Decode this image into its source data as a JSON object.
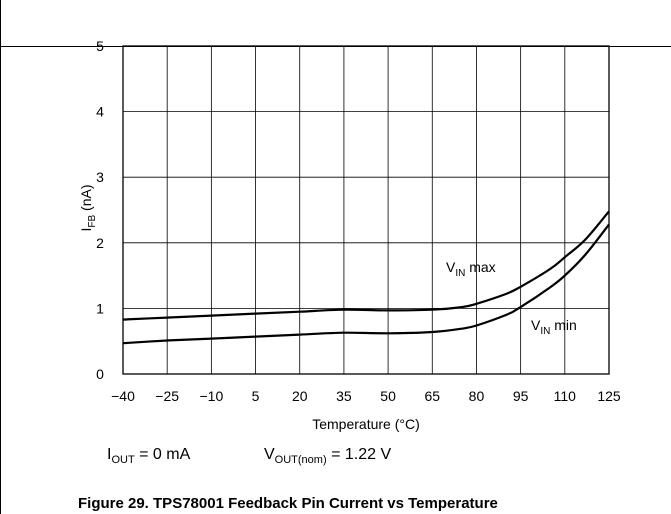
{
  "chart_data": {
    "type": "line",
    "xlabel": "Temperature (°C)",
    "ylabel": {
      "main": "I",
      "sub": "FB",
      "suffix": " (nA)"
    },
    "xlim": [
      -40,
      125
    ],
    "ylim": [
      0,
      5
    ],
    "x_ticks": [
      -40,
      -25,
      -10,
      5,
      20,
      35,
      50,
      65,
      80,
      95,
      110,
      125
    ],
    "x_tick_labels": [
      "−40",
      "−25",
      "−10",
      "5",
      "20",
      "35",
      "50",
      "65",
      "80",
      "95",
      "110",
      "125"
    ],
    "y_ticks": [
      0,
      1,
      2,
      3,
      4,
      5
    ],
    "grid": true,
    "series": [
      {
        "name": "VIN max",
        "label": {
          "main": "V",
          "sub": "IN",
          "suffix": " max"
        },
        "points": [
          [
            -40,
            0.83
          ],
          [
            -25,
            0.86
          ],
          [
            -10,
            0.89
          ],
          [
            5,
            0.92
          ],
          [
            20,
            0.95
          ],
          [
            35,
            0.98
          ],
          [
            50,
            0.97
          ],
          [
            65,
            0.98
          ],
          [
            75,
            1.02
          ],
          [
            80,
            1.07
          ],
          [
            90,
            1.22
          ],
          [
            95,
            1.33
          ],
          [
            105,
            1.6
          ],
          [
            110,
            1.78
          ],
          [
            117,
            2.05
          ],
          [
            125,
            2.48
          ]
        ]
      },
      {
        "name": "VIN min",
        "label": {
          "main": "V",
          "sub": "IN",
          "suffix": " min"
        },
        "points": [
          [
            -40,
            0.47
          ],
          [
            -25,
            0.51
          ],
          [
            -10,
            0.54
          ],
          [
            5,
            0.57
          ],
          [
            20,
            0.6
          ],
          [
            35,
            0.63
          ],
          [
            50,
            0.62
          ],
          [
            65,
            0.64
          ],
          [
            75,
            0.69
          ],
          [
            80,
            0.74
          ],
          [
            90,
            0.9
          ],
          [
            95,
            1.02
          ],
          [
            105,
            1.32
          ],
          [
            110,
            1.5
          ],
          [
            117,
            1.82
          ],
          [
            125,
            2.28
          ]
        ]
      }
    ]
  },
  "conditions": {
    "iout": {
      "main": "I",
      "sub": "OUT",
      "rest": " = 0 mA"
    },
    "vout": {
      "main": "V",
      "sub": "OUT(nom)",
      "rest": " = 1.22 V"
    }
  },
  "caption": "Figure 29. TPS78001 Feedback Pin Current vs Temperature"
}
